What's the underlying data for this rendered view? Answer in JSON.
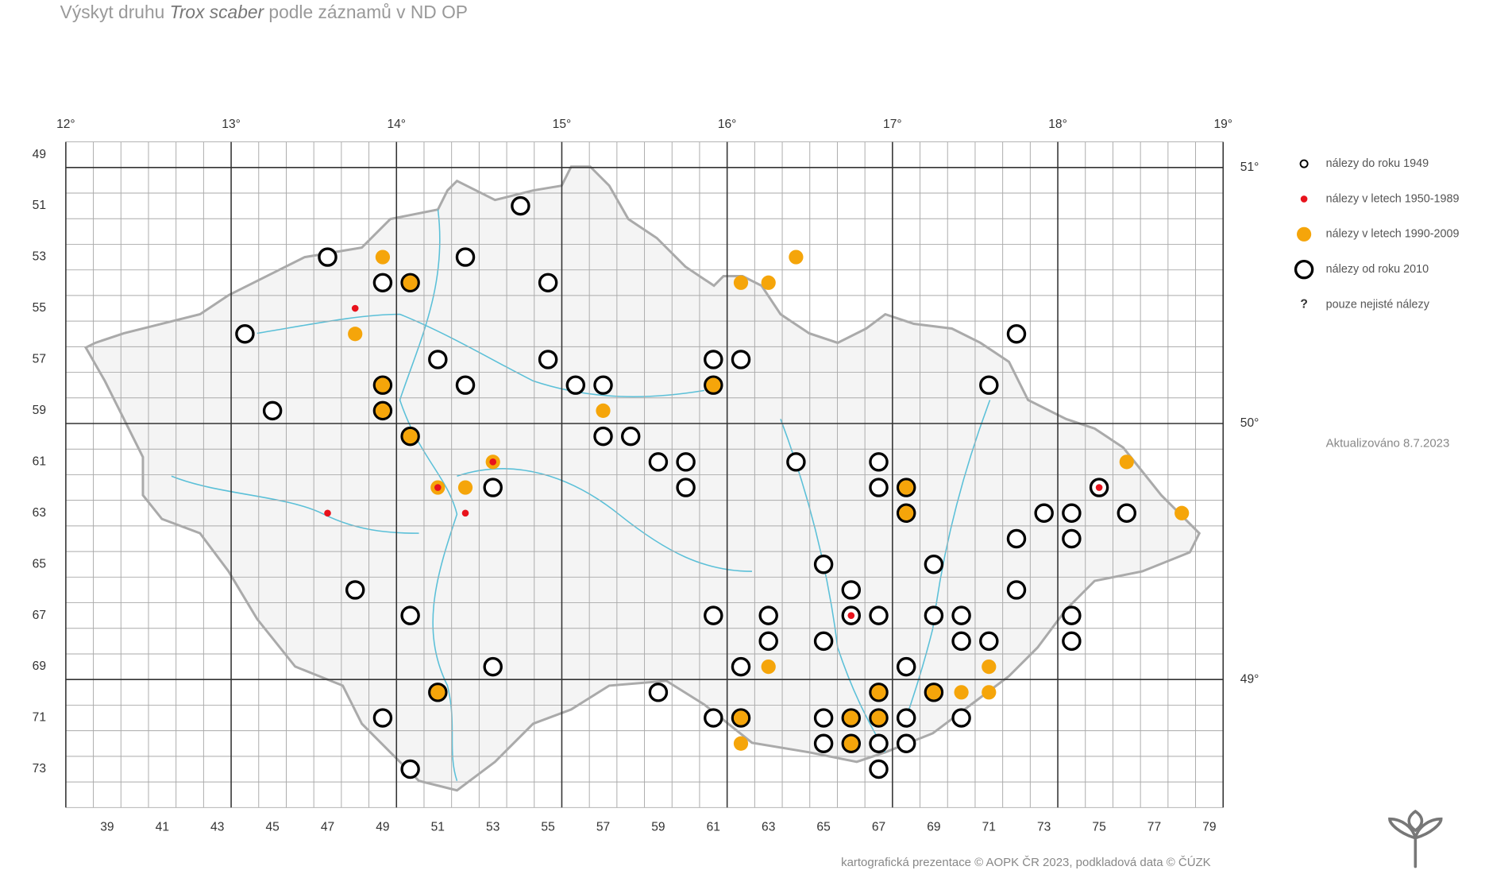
{
  "map": {
    "type": "map",
    "title_parts": [
      "Výskyt druhu",
      "Trox scaber",
      "podle záznamů v ND OP"
    ],
    "lon_lim": [
      12,
      19
    ],
    "lat_lim": [
      51.1,
      48.5
    ],
    "lon_ticks": [
      {
        "value": 12,
        "label": "12°"
      },
      {
        "value": 13,
        "label": "13°"
      },
      {
        "value": 14,
        "label": "14°"
      },
      {
        "value": 15,
        "label": "15°"
      },
      {
        "value": 16,
        "label": "16°"
      },
      {
        "value": 17,
        "label": "17°"
      },
      {
        "value": 18,
        "label": "18°"
      },
      {
        "value": 19,
        "label": "19°"
      }
    ],
    "lat_ticks": [
      {
        "value": 51,
        "label": "51°"
      },
      {
        "value": 50,
        "label": "50°"
      },
      {
        "value": 49,
        "label": "49°"
      }
    ],
    "col_lim": [
      38,
      80
    ],
    "row_lim": [
      49,
      75
    ],
    "col_labels": [
      39,
      41,
      43,
      45,
      47,
      49,
      51,
      53,
      55,
      57,
      59,
      61,
      63,
      65,
      67,
      69,
      71,
      73,
      75,
      77,
      79
    ],
    "row_labels": [
      49,
      51,
      53,
      55,
      57,
      59,
      61,
      63,
      65,
      67,
      69,
      71,
      73
    ],
    "series": [
      {
        "name": "nálezy do roku 1949",
        "style": "ring-small",
        "color": "#000000",
        "points": []
      },
      {
        "name": "nálezy v letech 1950-1989",
        "style": "dot",
        "color": "#e8121c",
        "points": [
          [
            48,
            55
          ],
          [
            53,
            61
          ],
          [
            51,
            62
          ],
          [
            75,
            62
          ],
          [
            47,
            63
          ],
          [
            52,
            63
          ],
          [
            66,
            67
          ]
        ]
      },
      {
        "name": "nálezy v letech 1990-2009",
        "style": "disc",
        "color": "#f5a50a",
        "points": [
          [
            49,
            53
          ],
          [
            64,
            53
          ],
          [
            50,
            54
          ],
          [
            62,
            54
          ],
          [
            63,
            54
          ],
          [
            48,
            56
          ],
          [
            49,
            58
          ],
          [
            61,
            58
          ],
          [
            49,
            59
          ],
          [
            57,
            59
          ],
          [
            50,
            60
          ],
          [
            53,
            61
          ],
          [
            76,
            61
          ],
          [
            51,
            62
          ],
          [
            52,
            62
          ],
          [
            68,
            62
          ],
          [
            68,
            63
          ],
          [
            78,
            63
          ],
          [
            63,
            69
          ],
          [
            71,
            69
          ],
          [
            51,
            70
          ],
          [
            67,
            70
          ],
          [
            69,
            70
          ],
          [
            70,
            70
          ],
          [
            71,
            70
          ],
          [
            62,
            71
          ],
          [
            66,
            71
          ],
          [
            67,
            71
          ],
          [
            62,
            72
          ],
          [
            66,
            72
          ]
        ]
      },
      {
        "name": "nálezy od roku 2010",
        "style": "ring",
        "color": "#000000",
        "points": [
          [
            54,
            51
          ],
          [
            47,
            53
          ],
          [
            52,
            53
          ],
          [
            49,
            54
          ],
          [
            50,
            54
          ],
          [
            55,
            54
          ],
          [
            44,
            56
          ],
          [
            72,
            56
          ],
          [
            51,
            57
          ],
          [
            55,
            57
          ],
          [
            61,
            57
          ],
          [
            62,
            57
          ],
          [
            49,
            58
          ],
          [
            52,
            58
          ],
          [
            56,
            58
          ],
          [
            57,
            58
          ],
          [
            61,
            58
          ],
          [
            71,
            58
          ],
          [
            45,
            59
          ],
          [
            49,
            59
          ],
          [
            50,
            60
          ],
          [
            57,
            60
          ],
          [
            58,
            60
          ],
          [
            59,
            61
          ],
          [
            60,
            61
          ],
          [
            64,
            61
          ],
          [
            67,
            61
          ],
          [
            53,
            62
          ],
          [
            60,
            62
          ],
          [
            67,
            62
          ],
          [
            68,
            62
          ],
          [
            75,
            62
          ],
          [
            68,
            63
          ],
          [
            73,
            63
          ],
          [
            74,
            63
          ],
          [
            76,
            63
          ],
          [
            72,
            64
          ],
          [
            74,
            64
          ],
          [
            65,
            65
          ],
          [
            69,
            65
          ],
          [
            48,
            66
          ],
          [
            66,
            66
          ],
          [
            72,
            66
          ],
          [
            50,
            67
          ],
          [
            61,
            67
          ],
          [
            63,
            67
          ],
          [
            66,
            67
          ],
          [
            67,
            67
          ],
          [
            69,
            67
          ],
          [
            70,
            67
          ],
          [
            74,
            67
          ],
          [
            63,
            68
          ],
          [
            65,
            68
          ],
          [
            70,
            68
          ],
          [
            71,
            68
          ],
          [
            74,
            68
          ],
          [
            53,
            69
          ],
          [
            62,
            69
          ],
          [
            68,
            69
          ],
          [
            51,
            70
          ],
          [
            59,
            70
          ],
          [
            67,
            70
          ],
          [
            69,
            70
          ],
          [
            49,
            71
          ],
          [
            61,
            71
          ],
          [
            62,
            71
          ],
          [
            65,
            71
          ],
          [
            66,
            71
          ],
          [
            67,
            71
          ],
          [
            68,
            71
          ],
          [
            70,
            71
          ],
          [
            65,
            72
          ],
          [
            66,
            72
          ],
          [
            67,
            72
          ],
          [
            68,
            72
          ],
          [
            50,
            73
          ],
          [
            67,
            73
          ]
        ]
      },
      {
        "name": "pouze nejisté nálezy",
        "style": "question",
        "symbol": "?",
        "color": "#000000",
        "points": []
      }
    ],
    "updated": "Aktualizováno 8.7.2023",
    "credit": "kartografická prezentace © AOPK ČR 2023, podkladová data © ČÚZK"
  }
}
